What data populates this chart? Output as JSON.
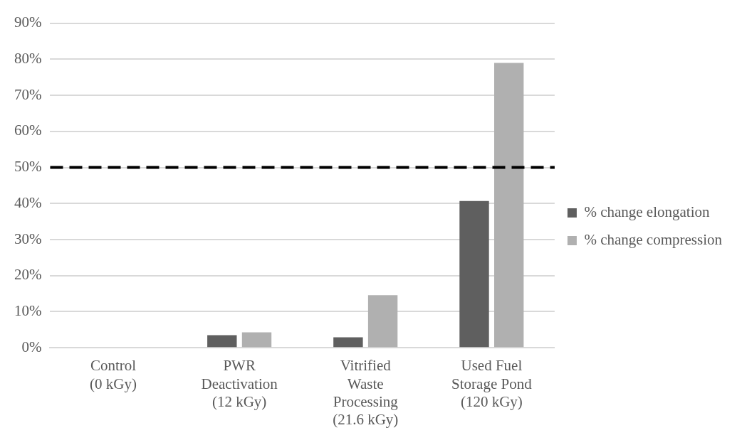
{
  "chart_data": {
    "type": "bar",
    "categories": [
      "Control\n(0 kGy)",
      "PWR\nDeactivation\n(12 kGy)",
      "Vitrified\nWaste\nProcessing\n(21.6 kGy)",
      "Used Fuel\nStorage Pond\n(120 kGy)"
    ],
    "series": [
      {
        "name": "% change elongation",
        "color": "#5f5f5f",
        "values": [
          0,
          3.5,
          2.9,
          40.7
        ]
      },
      {
        "name": "% change compression",
        "color": "#b0b0b0",
        "values": [
          0,
          4.3,
          14.6,
          79.0
        ]
      }
    ],
    "ylim": [
      0,
      90
    ],
    "yticks": [
      {
        "value": 0,
        "label": "0%"
      },
      {
        "value": 10,
        "label": "10%"
      },
      {
        "value": 20,
        "label": "20%"
      },
      {
        "value": 30,
        "label": "30%"
      },
      {
        "value": 40,
        "label": "40%"
      },
      {
        "value": 50,
        "label": "50%"
      },
      {
        "value": 60,
        "label": "60%"
      },
      {
        "value": 70,
        "label": "70%"
      },
      {
        "value": 80,
        "label": "80%"
      },
      {
        "value": 90,
        "label": "90%"
      }
    ],
    "grid": "y",
    "legend": "right",
    "ref_lines": [
      {
        "axis": "y",
        "value": 50,
        "color": "#000000",
        "line_style": "dashed"
      }
    ]
  }
}
